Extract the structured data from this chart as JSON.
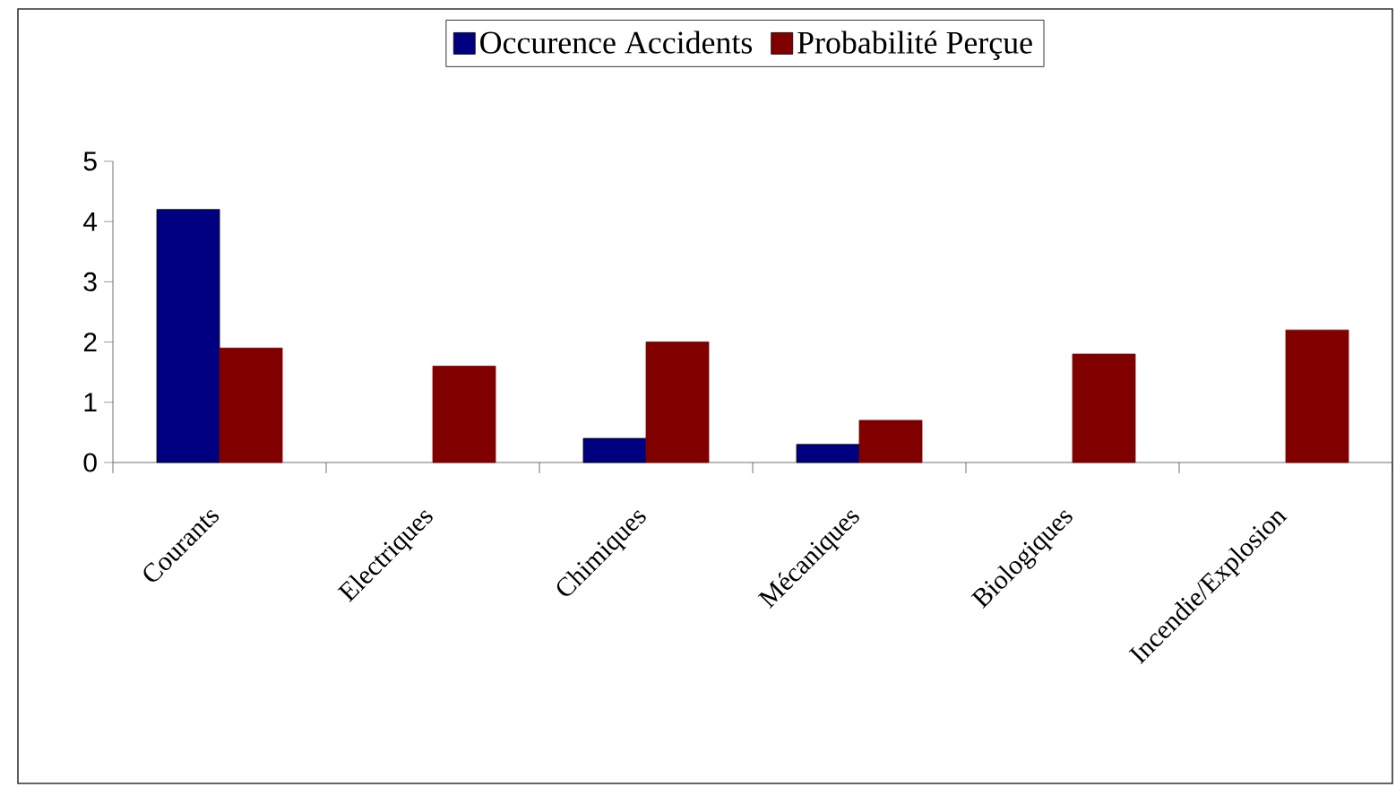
{
  "chart_data": {
    "type": "bar",
    "categories": [
      "Courants",
      "Electriques",
      "Chimiques",
      "Mécaniques",
      "Biologiques",
      "Incendie/Explosion"
    ],
    "series": [
      {
        "name": "Occurence Accidents",
        "color": "#000080",
        "values": [
          4.2,
          null,
          0.4,
          0.3,
          null,
          null
        ]
      },
      {
        "name": "Probabilité Perçue",
        "color": "#800000",
        "values": [
          1.9,
          1.6,
          2.0,
          0.7,
          1.8,
          2.2
        ]
      }
    ],
    "ylim": [
      0,
      5
    ],
    "yticks": [
      0,
      1,
      2,
      3,
      4,
      5
    ],
    "legend": "top"
  }
}
